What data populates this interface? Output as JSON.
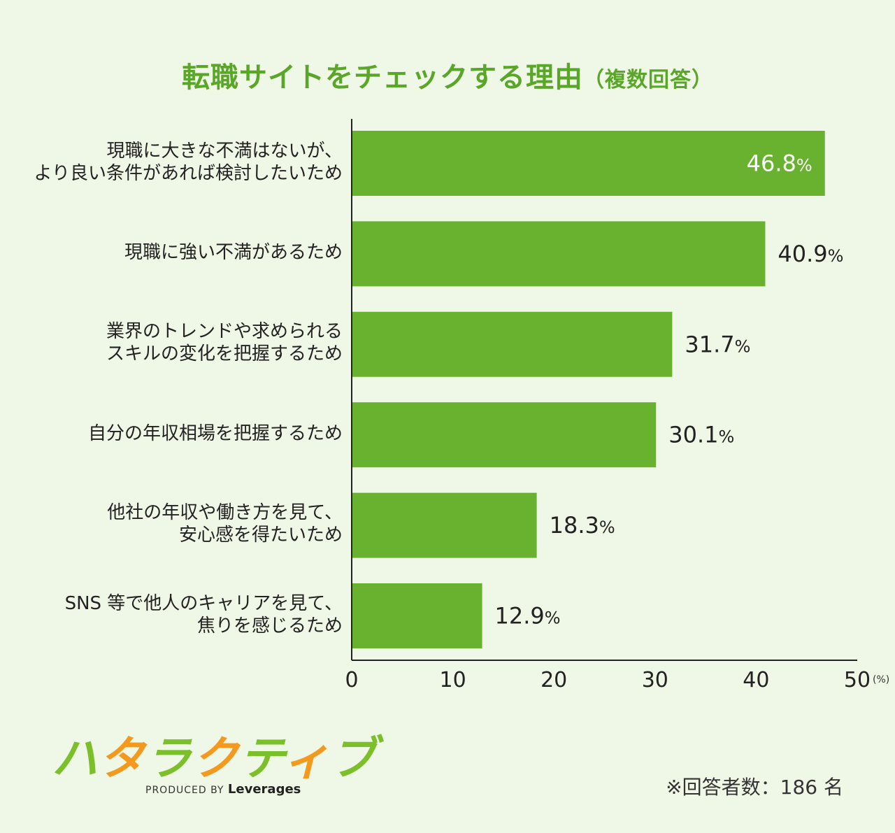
{
  "title": {
    "main": "転職サイトをチェックする理由",
    "sub": "（複数回答）"
  },
  "chart_data": {
    "type": "bar",
    "orientation": "horizontal",
    "categories": [
      [
        "現職に大きな不満はないが、",
        "より良い条件があれば検討したいため"
      ],
      [
        "現職に強い不満があるため"
      ],
      [
        "業界のトレンドや求められる",
        "スキルの変化を把握するため"
      ],
      [
        "自分の年収相場を把握するため"
      ],
      [
        "他社の年収や働き方を見て、",
        "安心感を得たいため"
      ],
      [
        "SNS 等で他人のキャリアを見て、",
        "焦りを感じるため"
      ]
    ],
    "values": [
      46.8,
      40.9,
      31.7,
      30.1,
      18.3,
      12.9
    ],
    "value_labels": [
      "46.8%",
      "40.9%",
      "31.7%",
      "30.1%",
      "18.3%",
      "12.9%"
    ],
    "xlim": [
      0,
      50
    ],
    "xticks": [
      "0",
      "10",
      "20",
      "30",
      "40",
      "50"
    ],
    "x_unit": "(%)",
    "grid": false,
    "bar_color": "#68b22f",
    "label_inside_first_color": "#ffffff"
  },
  "logo": {
    "name": "ハタラクティブ",
    "produced_by": "PRODUCED BY",
    "brand": "Leverages"
  },
  "note": "※回答者数：186 名",
  "colors": {
    "background": "#eff7e6",
    "title": "#5aa628",
    "logo_green": "#7bbf2a",
    "logo_orange": "#f39a1e"
  }
}
